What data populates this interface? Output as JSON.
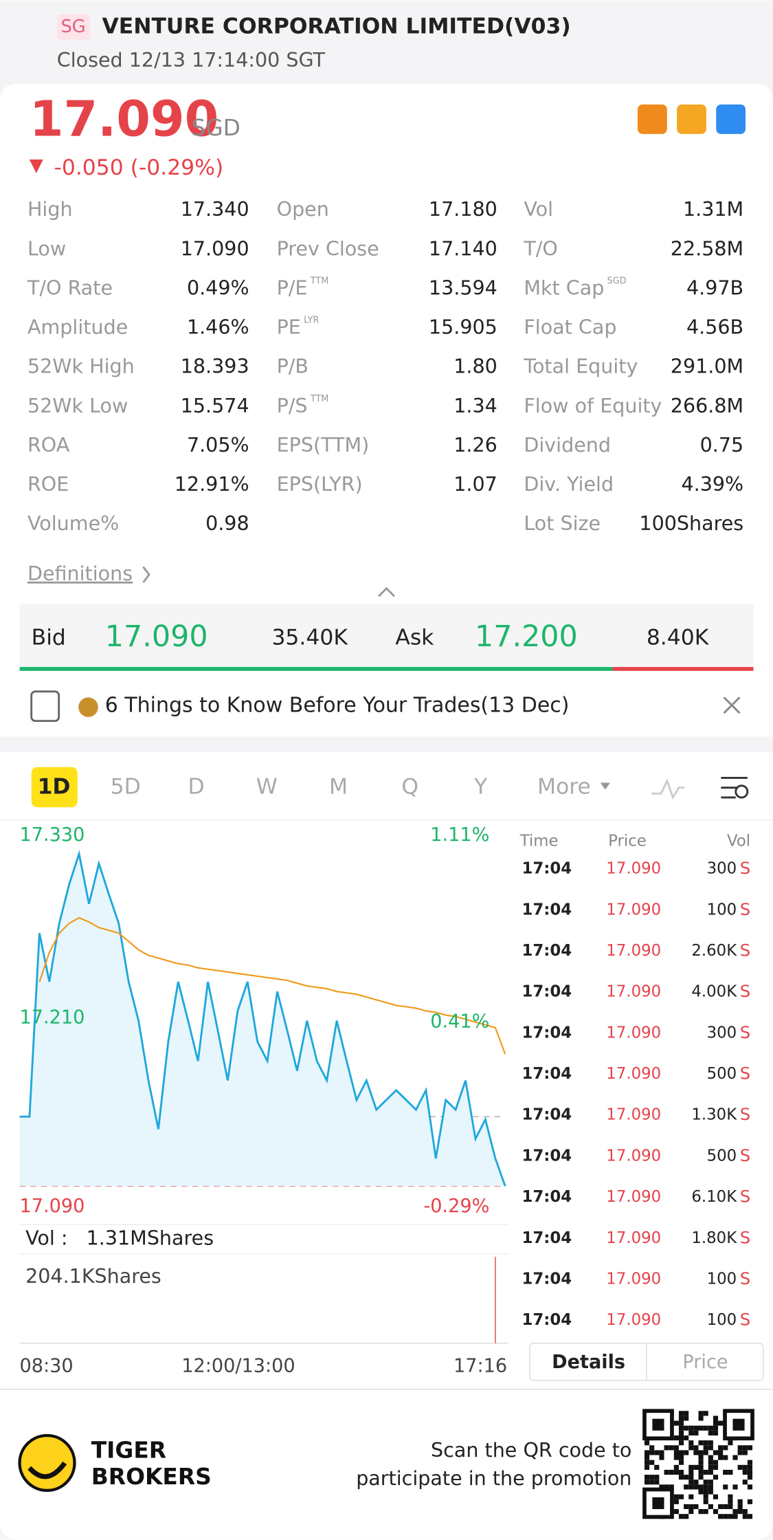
{
  "header": {
    "badge": "SG",
    "title": "VENTURE CORPORATION LIMITED(V03)",
    "status": "Closed 12/13 17:14:00 SGT"
  },
  "quote": {
    "price": "17.090",
    "currency": "SGD",
    "change": "-0.050 (-0.29%)"
  },
  "stats": {
    "columns": [
      [
        {
          "label": "High",
          "value": "17.340"
        },
        {
          "label": "Low",
          "value": "17.090"
        },
        {
          "label": "T/O Rate",
          "value": "0.49%"
        },
        {
          "label": "Amplitude",
          "value": "1.46%"
        },
        {
          "label": "52Wk High",
          "value": "18.393"
        },
        {
          "label": "52Wk Low",
          "value": "15.574"
        },
        {
          "label": "ROA",
          "value": "7.05%"
        },
        {
          "label": "ROE",
          "value": "12.91%"
        },
        {
          "label": "Volume%",
          "value": "0.98"
        }
      ],
      [
        {
          "label": "Open",
          "value": "17.180"
        },
        {
          "label": "Prev Close",
          "value": "17.140"
        },
        {
          "label": "P/E",
          "sup": "TTM",
          "value": "13.594"
        },
        {
          "label": "PE",
          "sup": "LYR",
          "value": "15.905"
        },
        {
          "label": "P/B",
          "value": "1.80"
        },
        {
          "label": "P/S",
          "sup": "TTM",
          "value": "1.34"
        },
        {
          "label": "EPS(TTM)",
          "value": "1.26"
        },
        {
          "label": "EPS(LYR)",
          "value": "1.07"
        }
      ],
      [
        {
          "label": "Vol",
          "value": "1.31M"
        },
        {
          "label": "T/O",
          "value": "22.58M"
        },
        {
          "label": "Mkt Cap",
          "sup": "SGD",
          "value": "4.97B"
        },
        {
          "label": "Float Cap",
          "value": "4.56B"
        },
        {
          "label": "Total Equity",
          "value": "291.0M"
        },
        {
          "label": "Flow of Equity",
          "value": "266.8M"
        },
        {
          "label": "Dividend",
          "value": "0.75"
        },
        {
          "label": "Div. Yield",
          "value": "4.39%"
        },
        {
          "label": "Lot Size",
          "value": "100Shares"
        }
      ]
    ]
  },
  "definitions": "Definitions",
  "bidask": {
    "bid_label": "Bid",
    "bid": "17.090",
    "bid_size": "35.40K",
    "ask_label": "Ask",
    "ask": "17.200",
    "ask_size": "8.40K"
  },
  "news": "6 Things to Know Before Your Trades(13 Dec)",
  "tabs": [
    "1D",
    "5D",
    "D",
    "W",
    "M",
    "Q",
    "Y",
    "More"
  ],
  "chart": {
    "ylim": [
      17.09,
      17.33
    ],
    "prev_close": 17.14,
    "labels": {
      "high": "17.330",
      "high_pct": "1.11%",
      "mid": "17.210",
      "mid_pct": "0.41%",
      "low": "17.090",
      "low_pct": "-0.29%"
    },
    "price": [
      17.14,
      17.14,
      17.272,
      17.237,
      17.279,
      17.307,
      17.329,
      17.293,
      17.322,
      17.3,
      17.279,
      17.237,
      17.209,
      17.166,
      17.131,
      17.194,
      17.237,
      17.209,
      17.18,
      17.237,
      17.202,
      17.166,
      17.216,
      17.237,
      17.194,
      17.18,
      17.23,
      17.202,
      17.173,
      17.209,
      17.18,
      17.166,
      17.209,
      17.18,
      17.152,
      17.166,
      17.145,
      17.152,
      17.159,
      17.152,
      17.145,
      17.159,
      17.11,
      17.152,
      17.145,
      17.166,
      17.124,
      17.138,
      17.11,
      17.09
    ],
    "average": [
      null,
      null,
      17.237,
      17.258,
      17.272,
      17.279,
      17.283,
      17.28,
      17.276,
      17.274,
      17.272,
      17.266,
      17.26,
      17.256,
      17.254,
      17.252,
      17.25,
      17.249,
      17.247,
      17.246,
      17.245,
      17.244,
      17.243,
      17.242,
      17.241,
      17.24,
      17.239,
      17.238,
      17.236,
      17.234,
      17.233,
      17.232,
      17.23,
      17.229,
      17.228,
      17.226,
      17.224,
      17.222,
      17.22,
      17.219,
      17.218,
      17.216,
      17.215,
      17.213,
      17.212,
      17.21,
      17.208,
      17.206,
      17.204,
      17.185
    ],
    "vol_label": "Vol :",
    "vol": "1.31MShares",
    "max_vol": "204.1KShares",
    "times": [
      "08:30",
      "12:00/13:00",
      "17:16"
    ]
  },
  "ticks": {
    "headers": [
      "Time",
      "Price",
      "Vol"
    ],
    "rows": [
      [
        "17:04",
        "17.090",
        "300",
        "S"
      ],
      [
        "17:04",
        "17.090",
        "100",
        "S"
      ],
      [
        "17:04",
        "17.090",
        "2.60K",
        "S"
      ],
      [
        "17:04",
        "17.090",
        "4.00K",
        "S"
      ],
      [
        "17:04",
        "17.090",
        "300",
        "S"
      ],
      [
        "17:04",
        "17.090",
        "500",
        "S"
      ],
      [
        "17:04",
        "17.090",
        "1.30K",
        "S"
      ],
      [
        "17:04",
        "17.090",
        "500",
        "S"
      ],
      [
        "17:04",
        "17.090",
        "6.10K",
        "S"
      ],
      [
        "17:04",
        "17.090",
        "1.80K",
        "S"
      ],
      [
        "17:04",
        "17.090",
        "100",
        "S"
      ],
      [
        "17:04",
        "17.090",
        "100",
        "S"
      ]
    ]
  },
  "buttons": [
    "Details",
    "Price"
  ],
  "footer": {
    "brand": [
      "TIGER",
      "BROKERS"
    ],
    "promo": [
      "Scan the QR code to",
      "participate in the promotion"
    ]
  }
}
